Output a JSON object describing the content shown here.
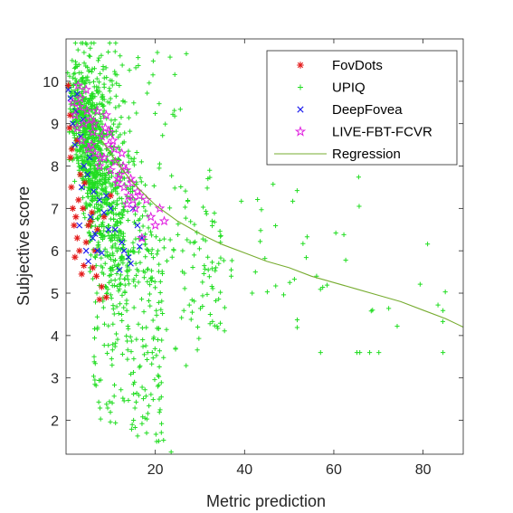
{
  "chart_data": {
    "type": "scatter",
    "title": "",
    "xlabel": "Metric prediction",
    "ylabel": "Subjective score",
    "xlim": [
      0,
      89
    ],
    "ylim": [
      1.2,
      11
    ],
    "xticks": [
      20,
      40,
      60,
      80
    ],
    "yticks": [
      2,
      3,
      4,
      5,
      6,
      7,
      8,
      9,
      10
    ],
    "grid": false,
    "legend_position": "top-right",
    "colors": {
      "axis": "#262626",
      "fovdots": "#e41a1a",
      "upiq": "#22dd22",
      "deepfovea": "#1a1aee",
      "livefbt": "#e020e0",
      "regression": "#77ac30"
    },
    "series": [
      {
        "name": "FovDots",
        "marker": "asterisk",
        "x": [
          0.5,
          0.8,
          1.0,
          1.2,
          1.5,
          1.8,
          2.0,
          2.2,
          2.5,
          2.8,
          3.0,
          3.5,
          4.0,
          4.5,
          5.0,
          5.5,
          6.0,
          6.5,
          7.0,
          7.5,
          8.0,
          8.5,
          9.0,
          10.0,
          2.5,
          3.2,
          1.3,
          0.9,
          4.2,
          6.8,
          5.8,
          3.8
        ],
        "y": [
          9.9,
          8.9,
          8.2,
          7.5,
          7.0,
          6.6,
          5.85,
          6.8,
          6.3,
          7.2,
          6.0,
          5.45,
          5.65,
          6.2,
          6.6,
          6.7,
          5.6,
          6.0,
          6.5,
          4.85,
          5.15,
          6.8,
          4.9,
          7.3,
          8.6,
          7.8,
          8.4,
          9.2,
          7.6,
          5.4,
          6.9,
          7.0
        ]
      },
      {
        "name": "UPIQ",
        "marker": "plus",
        "x": [],
        "y": []
      },
      {
        "name": "DeepFovea",
        "marker": "x",
        "x": [
          0.5,
          1.0,
          1.5,
          2.0,
          2.5,
          3.0,
          3.5,
          4.0,
          4.5,
          5.0,
          5.5,
          6.0,
          6.5,
          7.0,
          7.5,
          8.0,
          8.5,
          9.0,
          9.5,
          10.0,
          11.0,
          12.0,
          13.0,
          14.0,
          15.0,
          16.0,
          17.0,
          2.2,
          3.3,
          4.8,
          6.2,
          12.5,
          14.5,
          16.5,
          3.8,
          5.3
        ],
        "y": [
          9.8,
          9.6,
          9.0,
          8.5,
          9.7,
          6.6,
          7.5,
          8.0,
          6.0,
          5.75,
          6.8,
          6.3,
          6.4,
          6.0,
          7.2,
          5.95,
          6.9,
          7.3,
          6.5,
          7.0,
          6.5,
          5.55,
          6.0,
          5.85,
          7.0,
          6.6,
          6.3,
          9.3,
          8.7,
          7.8,
          7.4,
          6.2,
          5.7,
          6.1,
          9.1,
          8.2
        ]
      },
      {
        "name": "LIVE-FBT-FCVR",
        "marker": "pentagram",
        "x": [
          1.5,
          2.0,
          2.5,
          3.0,
          3.5,
          4.0,
          4.5,
          5.0,
          5.5,
          6.0,
          6.5,
          7.0,
          7.5,
          8.0,
          8.5,
          9.0,
          9.5,
          10.0,
          10.5,
          11.0,
          11.5,
          12.0,
          12.5,
          13.0,
          13.5,
          14.0,
          14.5,
          15.0,
          15.5,
          16.0,
          17.0,
          18.0,
          19.0,
          20.0,
          21.0,
          22.0,
          3.2,
          4.7,
          6.3,
          8.8,
          10.8,
          12.8,
          14.8,
          16.5,
          5.7,
          7.7,
          9.7,
          11.7,
          13.7,
          2.7
        ],
        "y": [
          9.5,
          9.2,
          8.9,
          9.4,
          8.6,
          9.0,
          9.8,
          8.4,
          9.1,
          8.8,
          8.3,
          9.3,
          8.0,
          8.7,
          8.2,
          9.2,
          8.5,
          7.9,
          8.6,
          8.1,
          7.6,
          7.8,
          8.3,
          7.5,
          7.9,
          7.3,
          7.7,
          7.2,
          7.0,
          7.4,
          6.3,
          7.2,
          6.8,
          6.6,
          7.0,
          6.7,
          9.6,
          9.3,
          9.0,
          8.9,
          8.4,
          8.0,
          7.6,
          7.3,
          8.5,
          8.2,
          8.8,
          7.7,
          7.1,
          9.9
        ]
      },
      {
        "name": "Regression",
        "marker": "line",
        "x": [
          8,
          10,
          12,
          15,
          20,
          25,
          30,
          35,
          40,
          45,
          50,
          55,
          60,
          65,
          70,
          75,
          80,
          85,
          89
        ],
        "y": [
          8.6,
          8.3,
          8.0,
          7.6,
          7.08,
          6.7,
          6.4,
          6.15,
          5.95,
          5.75,
          5.6,
          5.4,
          5.25,
          5.1,
          4.95,
          4.8,
          4.6,
          4.4,
          4.2
        ]
      }
    ]
  }
}
